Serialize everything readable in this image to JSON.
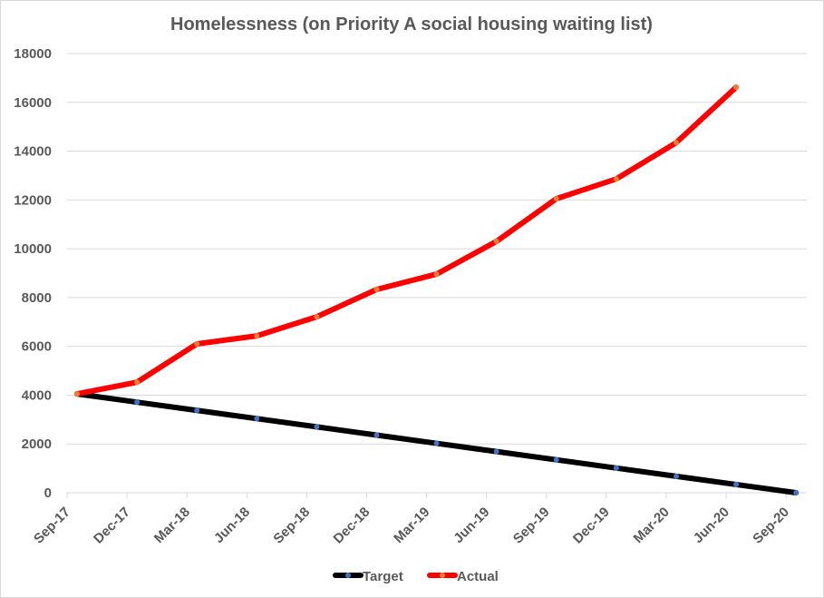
{
  "chart_data": {
    "type": "line",
    "title": "Homelessness (on Priority A social housing waiting list)",
    "xlabel": "",
    "ylabel": "",
    "categories": [
      "Sep-17",
      "Dec-17",
      "Mar-18",
      "Jun-18",
      "Sep-18",
      "Dec-18",
      "Mar-19",
      "Jun-19",
      "Sep-19",
      "Dec-19",
      "Mar-20",
      "Jun-20",
      "Sep-20"
    ],
    "ylim": [
      0,
      18000
    ],
    "yticks": [
      0,
      2000,
      4000,
      6000,
      8000,
      10000,
      12000,
      14000,
      16000,
      18000
    ],
    "grid": true,
    "legend": "bottom",
    "series": [
      {
        "name": "Target",
        "color": "#000000",
        "marker_color": "#4472c4",
        "values": [
          4050,
          3712,
          3375,
          3038,
          2700,
          2362,
          2025,
          1688,
          1350,
          1012,
          675,
          338,
          0
        ]
      },
      {
        "name": "Actual",
        "color": "#ff0000",
        "marker_color": "#ed7d31",
        "values": [
          4050,
          4530,
          6100,
          6430,
          7210,
          8330,
          8960,
          10300,
          12050,
          12860,
          14350,
          16620,
          null
        ]
      }
    ]
  }
}
